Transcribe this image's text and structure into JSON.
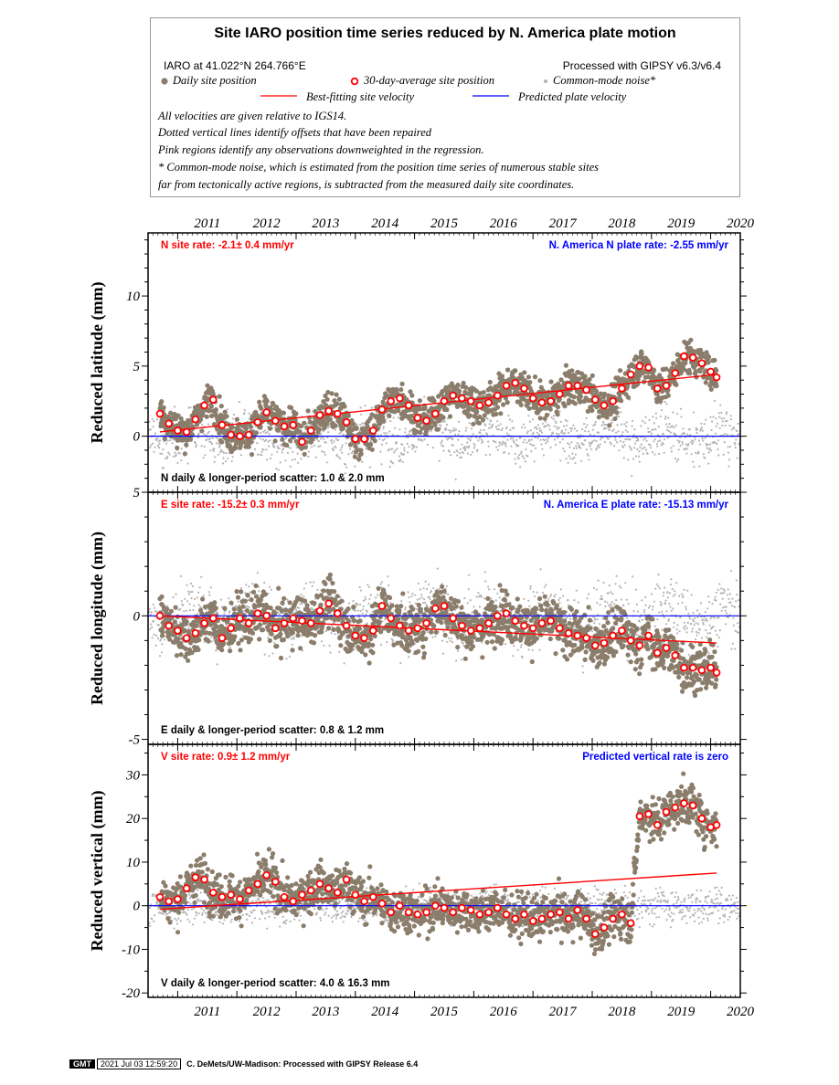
{
  "legend": {
    "title": "Site IARO position time series reduced by N. America plate motion",
    "location": "IARO at 41.022°N 264.766°E",
    "processing": "Processed with GIPSY v6.3/v6.4",
    "daily_label": "Daily site position",
    "avg_label": "30-day-average site position",
    "cm_label": "Common-mode noise*",
    "best_label": "Best-fitting site velocity",
    "pred_label": "Predicted plate velocity",
    "note1": "All velocities are given relative to IGS14.",
    "note2": "Dotted vertical lines identify offsets that have been repaired",
    "note3": "Pink regions identify any observations downweighted in the regression.",
    "note4": "* Common-mode noise, which is estimated from the position time series of numerous stable sites",
    "note5": "far from tectonically active regions, is subtracted from the measured daily site coordinates.",
    "colors": {
      "daily": "#8b7d6b",
      "avg_ring": "#ff0000",
      "common_mode": "#b4b4b4",
      "best_fit": "#ff0000",
      "predicted": "#0000ff"
    }
  },
  "footer": {
    "logo": "GMT",
    "timestamp": "2021 Jul 03 12:59:20",
    "credit": "C. DeMets/UW-Madison: Processed with GIPSY Release 6.4"
  },
  "chart_data": [
    {
      "type": "scatter",
      "ylabel": "Reduced latitude (mm)",
      "xlim": [
        2010.5,
        2020.5
      ],
      "ylim": [
        -4,
        14.5
      ],
      "yticks": [
        0,
        5,
        10
      ],
      "x_ticks": [
        "2011",
        "2012",
        "2013",
        "2014",
        "2015",
        "2016",
        "2017",
        "2018",
        "2019",
        "2020"
      ],
      "rate_label": "N site rate:  -2.1± 0.4 mm/yr",
      "plate_label": "N. America N plate rate: -2.55 mm/yr",
      "scatter_label": "N daily & longer-period scatter:  1.0 &  2.0 mm",
      "predicted_rate_mm_per_yr": 0,
      "best_fit": {
        "x": [
          2010.7,
          2020.1
        ],
        "y": [
          0.3,
          4.4
        ]
      },
      "avg": {
        "x": [
          2010.7,
          2010.85,
          2011.0,
          2011.15,
          2011.3,
          2011.45,
          2011.6,
          2011.75,
          2011.9,
          2012.05,
          2012.2,
          2012.35,
          2012.5,
          2012.65,
          2012.8,
          2012.95,
          2013.1,
          2013.25,
          2013.4,
          2013.55,
          2013.7,
          2013.85,
          2014.0,
          2014.15,
          2014.3,
          2014.45,
          2014.6,
          2014.75,
          2014.9,
          2015.05,
          2015.2,
          2015.35,
          2015.5,
          2015.65,
          2015.8,
          2015.95,
          2016.1,
          2016.25,
          2016.4,
          2016.55,
          2016.7,
          2016.85,
          2017.0,
          2017.15,
          2017.3,
          2017.45,
          2017.6,
          2017.75,
          2017.9,
          2018.05,
          2018.2,
          2018.35,
          2018.5,
          2018.65,
          2018.8,
          2018.95,
          2019.1,
          2019.25,
          2019.4,
          2019.55,
          2019.7,
          2019.85,
          2020.0,
          2020.1
        ],
        "y": [
          1.6,
          0.9,
          0.4,
          0.3,
          1.2,
          2.2,
          2.6,
          0.8,
          0.1,
          0.0,
          0.1,
          1.0,
          1.7,
          1.1,
          0.7,
          0.8,
          -0.4,
          0.4,
          1.5,
          1.8,
          1.6,
          1.0,
          -0.2,
          -0.2,
          0.4,
          1.9,
          2.5,
          2.7,
          2.2,
          1.3,
          1.1,
          1.6,
          2.5,
          2.9,
          2.7,
          2.5,
          2.2,
          2.4,
          2.9,
          3.6,
          3.8,
          3.4,
          2.7,
          2.4,
          2.5,
          3.0,
          3.6,
          3.6,
          3.3,
          2.6,
          2.2,
          2.5,
          3.4,
          4.4,
          5.0,
          4.9,
          3.4,
          3.6,
          4.5,
          5.7,
          5.6,
          5.2,
          4.6,
          4.2
        ]
      },
      "daily_spread_mm": 1.0,
      "common_mode_spread_mm": 1.4
    },
    {
      "type": "scatter",
      "ylabel": "Reduced longitude (mm)",
      "xlim": [
        2010.5,
        2020.5
      ],
      "ylim": [
        -5.2,
        5
      ],
      "yticks": [
        -5,
        0,
        5
      ],
      "x_ticks": [
        "2011",
        "2012",
        "2013",
        "2014",
        "2015",
        "2016",
        "2017",
        "2018",
        "2019",
        "2020"
      ],
      "rate_label": "E site rate:  -15.2± 0.3 mm/yr",
      "plate_label": "N. America E plate rate: -15.13 mm/yr",
      "scatter_label": "E daily & longer-period scatter:   0.8 &   1.2 mm",
      "predicted_rate_mm_per_yr": 0,
      "best_fit": {
        "x": [
          2010.7,
          2020.1
        ],
        "y": [
          0.0,
          -1.1
        ]
      },
      "avg": {
        "x": [
          2010.7,
          2010.85,
          2011.0,
          2011.15,
          2011.3,
          2011.45,
          2011.6,
          2011.75,
          2011.9,
          2012.05,
          2012.2,
          2012.35,
          2012.5,
          2012.65,
          2012.8,
          2012.95,
          2013.1,
          2013.25,
          2013.4,
          2013.55,
          2013.7,
          2013.85,
          2014.0,
          2014.15,
          2014.3,
          2014.45,
          2014.6,
          2014.75,
          2014.9,
          2015.05,
          2015.2,
          2015.35,
          2015.5,
          2015.65,
          2015.8,
          2015.95,
          2016.1,
          2016.25,
          2016.4,
          2016.55,
          2016.7,
          2016.85,
          2017.0,
          2017.15,
          2017.3,
          2017.45,
          2017.6,
          2017.75,
          2017.9,
          2018.05,
          2018.2,
          2018.35,
          2018.5,
          2018.65,
          2018.8,
          2018.95,
          2019.1,
          2019.25,
          2019.4,
          2019.55,
          2019.7,
          2019.85,
          2020.0,
          2020.1
        ],
        "y": [
          0.0,
          -0.4,
          -0.6,
          -0.9,
          -0.7,
          -0.3,
          -0.1,
          -0.9,
          -0.5,
          -0.1,
          -0.3,
          0.1,
          0.0,
          -0.5,
          -0.3,
          -0.1,
          -0.2,
          -0.3,
          0.2,
          0.5,
          0.1,
          -0.4,
          -0.8,
          -0.9,
          -0.6,
          0.4,
          -0.1,
          -0.4,
          -0.6,
          -0.5,
          -0.3,
          0.3,
          0.4,
          -0.1,
          -0.4,
          -0.6,
          -0.5,
          -0.3,
          0.0,
          0.1,
          -0.2,
          -0.4,
          -0.5,
          -0.3,
          -0.2,
          -0.5,
          -0.7,
          -0.8,
          -0.9,
          -1.2,
          -1.1,
          -0.8,
          -0.6,
          -1.0,
          -1.2,
          -0.8,
          -1.5,
          -1.3,
          -1.6,
          -2.1,
          -2.1,
          -2.2,
          -2.1,
          -2.3
        ]
      },
      "daily_spread_mm": 0.8,
      "common_mode_spread_mm": 1.0
    },
    {
      "type": "scatter",
      "ylabel": "Reduced vertical (mm)",
      "xlim": [
        2010.5,
        2020.5
      ],
      "ylim": [
        -21,
        37
      ],
      "yticks": [
        -20,
        -10,
        0,
        10,
        20,
        30
      ],
      "x_ticks": [
        "2011",
        "2012",
        "2013",
        "2014",
        "2015",
        "2016",
        "2017",
        "2018",
        "2019",
        "2020"
      ],
      "rate_label": "V site rate:  0.9± 1.2 mm/yr",
      "plate_label": "Predicted vertical rate is zero",
      "scatter_label": "V daily & longer-period scatter:   4.0 &  16.3 mm",
      "predicted_rate_mm_per_yr": 0,
      "best_fit": {
        "x": [
          2010.7,
          2020.1
        ],
        "y": [
          -0.8,
          7.5
        ]
      },
      "avg": {
        "x": [
          2010.7,
          2010.85,
          2011.0,
          2011.15,
          2011.3,
          2011.45,
          2011.6,
          2011.75,
          2011.9,
          2012.05,
          2012.2,
          2012.35,
          2012.5,
          2012.65,
          2012.8,
          2012.95,
          2013.1,
          2013.25,
          2013.4,
          2013.55,
          2013.7,
          2013.85,
          2014.0,
          2014.15,
          2014.3,
          2014.45,
          2014.6,
          2014.75,
          2014.9,
          2015.05,
          2015.2,
          2015.35,
          2015.5,
          2015.65,
          2015.8,
          2015.95,
          2016.1,
          2016.25,
          2016.4,
          2016.55,
          2016.7,
          2016.85,
          2017.0,
          2017.15,
          2017.3,
          2017.45,
          2017.6,
          2017.75,
          2017.9,
          2018.05,
          2018.2,
          2018.35,
          2018.5,
          2018.65,
          2018.8,
          2018.95,
          2019.1,
          2019.25,
          2019.4,
          2019.55,
          2019.7,
          2019.85,
          2020.0,
          2020.1
        ],
        "y": [
          2.0,
          1.0,
          1.5,
          4.0,
          6.5,
          6.0,
          3.0,
          2.0,
          2.5,
          1.5,
          3.5,
          5.0,
          7.0,
          5.5,
          2.0,
          1.0,
          2.5,
          3.5,
          5.0,
          4.0,
          3.0,
          6.0,
          2.5,
          1.0,
          2.0,
          0.5,
          -1.5,
          0.0,
          -1.5,
          -2.0,
          -1.5,
          0.0,
          -0.5,
          -1.5,
          -0.5,
          -1.0,
          -2.0,
          -1.5,
          -0.5,
          -2.0,
          -3.0,
          -2.0,
          -3.5,
          -3.0,
          -2.0,
          -1.5,
          -3.0,
          -1.0,
          -3.0,
          -6.5,
          -5.0,
          -3.0,
          -2.0,
          -4.0,
          20.5,
          21.0,
          18.5,
          21.5,
          22.5,
          23.5,
          23.0,
          20.0,
          18.0,
          18.5
        ]
      },
      "daily_spread_mm": 4.0,
      "common_mode_spread_mm": 3.0
    }
  ]
}
